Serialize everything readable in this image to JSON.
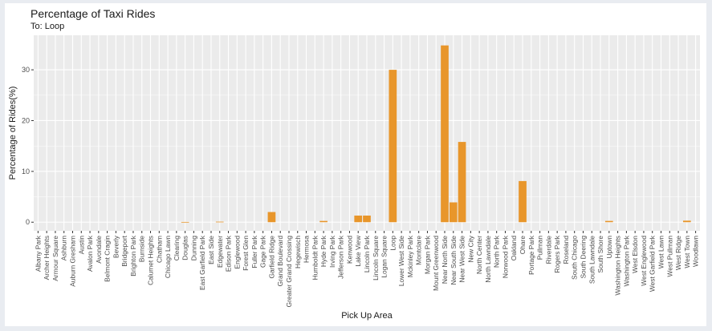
{
  "chart_data": {
    "type": "bar",
    "title": "Percentage of Taxi Rides",
    "subtitle": "To: Loop",
    "xlabel": "Pick Up Area",
    "ylabel": "Percentage of Rides(%)",
    "ylim": [
      -1.7,
      36.8
    ],
    "yticks": [
      0,
      10,
      20,
      30
    ],
    "grid": true,
    "legend": "none",
    "bar_color": "#e8962b",
    "panel_color": "#ebebeb",
    "categories": [
      "Albany Park",
      "Archer Heights",
      "Armour Square",
      "Ashburn",
      "Auburn Gresham",
      "Austin",
      "Avalon Park",
      "Avondale",
      "Belmont Cragin",
      "Beverly",
      "Bridgeport",
      "Brighton Park",
      "Burnside",
      "Calumet Heights",
      "Chatham",
      "Chicago Lawn",
      "Clearing",
      "Douglas",
      "Dunning",
      "East Garfield Park",
      "East Side",
      "Edgewater",
      "Edison Park",
      "Englewood",
      "Forest Glen",
      "Fuller Park",
      "Gage Park",
      "Garfield Ridge",
      "Grand Boulevard",
      "Greater Grand Crossing",
      "Hegewisch",
      "Hermosa",
      "Humboldt Park",
      "Hyde Park",
      "Irving Park",
      "Jefferson Park",
      "Kenwood",
      "Lake View",
      "Lincoln Park",
      "Lincoln Square",
      "Logan Square",
      "Loop",
      "Lower West Side",
      "Mckinley Park",
      "Montclare",
      "Morgan Park",
      "Mount Greenwood",
      "Near North Side",
      "Near South Side",
      "Near West Side",
      "New City",
      "North Center",
      "North Lawndale",
      "North Park",
      "Norwood Park",
      "Oakland",
      "Ohare",
      "Portage Park",
      "Pullman",
      "Riverdale",
      "Rogers Park",
      "Roseland",
      "South Chicago",
      "South Deering",
      "South Lawndale",
      "South Shore",
      "Uptown",
      "Washington Heights",
      "Washington Park",
      "West Elsdon",
      "West Englewood",
      "West Garfield Park",
      "West Lawn",
      "West Pullman",
      "West Ridge",
      "West Town",
      "Woodlawn"
    ],
    "values": [
      0,
      0,
      0,
      0,
      0,
      0,
      0,
      0,
      0,
      0,
      0,
      0,
      0,
      0,
      0,
      0,
      0,
      0.05,
      0,
      0,
      0,
      0.1,
      0,
      0,
      0,
      0,
      0,
      2.0,
      0,
      0,
      0,
      0,
      0,
      0.25,
      0,
      0,
      0,
      1.3,
      1.3,
      0,
      0,
      30.0,
      0,
      0,
      0,
      0,
      0,
      34.8,
      3.9,
      15.8,
      0,
      0,
      0,
      0,
      0,
      0,
      8.1,
      0,
      0,
      0,
      0,
      0,
      0,
      0,
      0,
      0,
      0.25,
      0,
      0,
      0,
      0,
      0,
      0,
      0,
      0,
      0.3,
      0
    ]
  }
}
